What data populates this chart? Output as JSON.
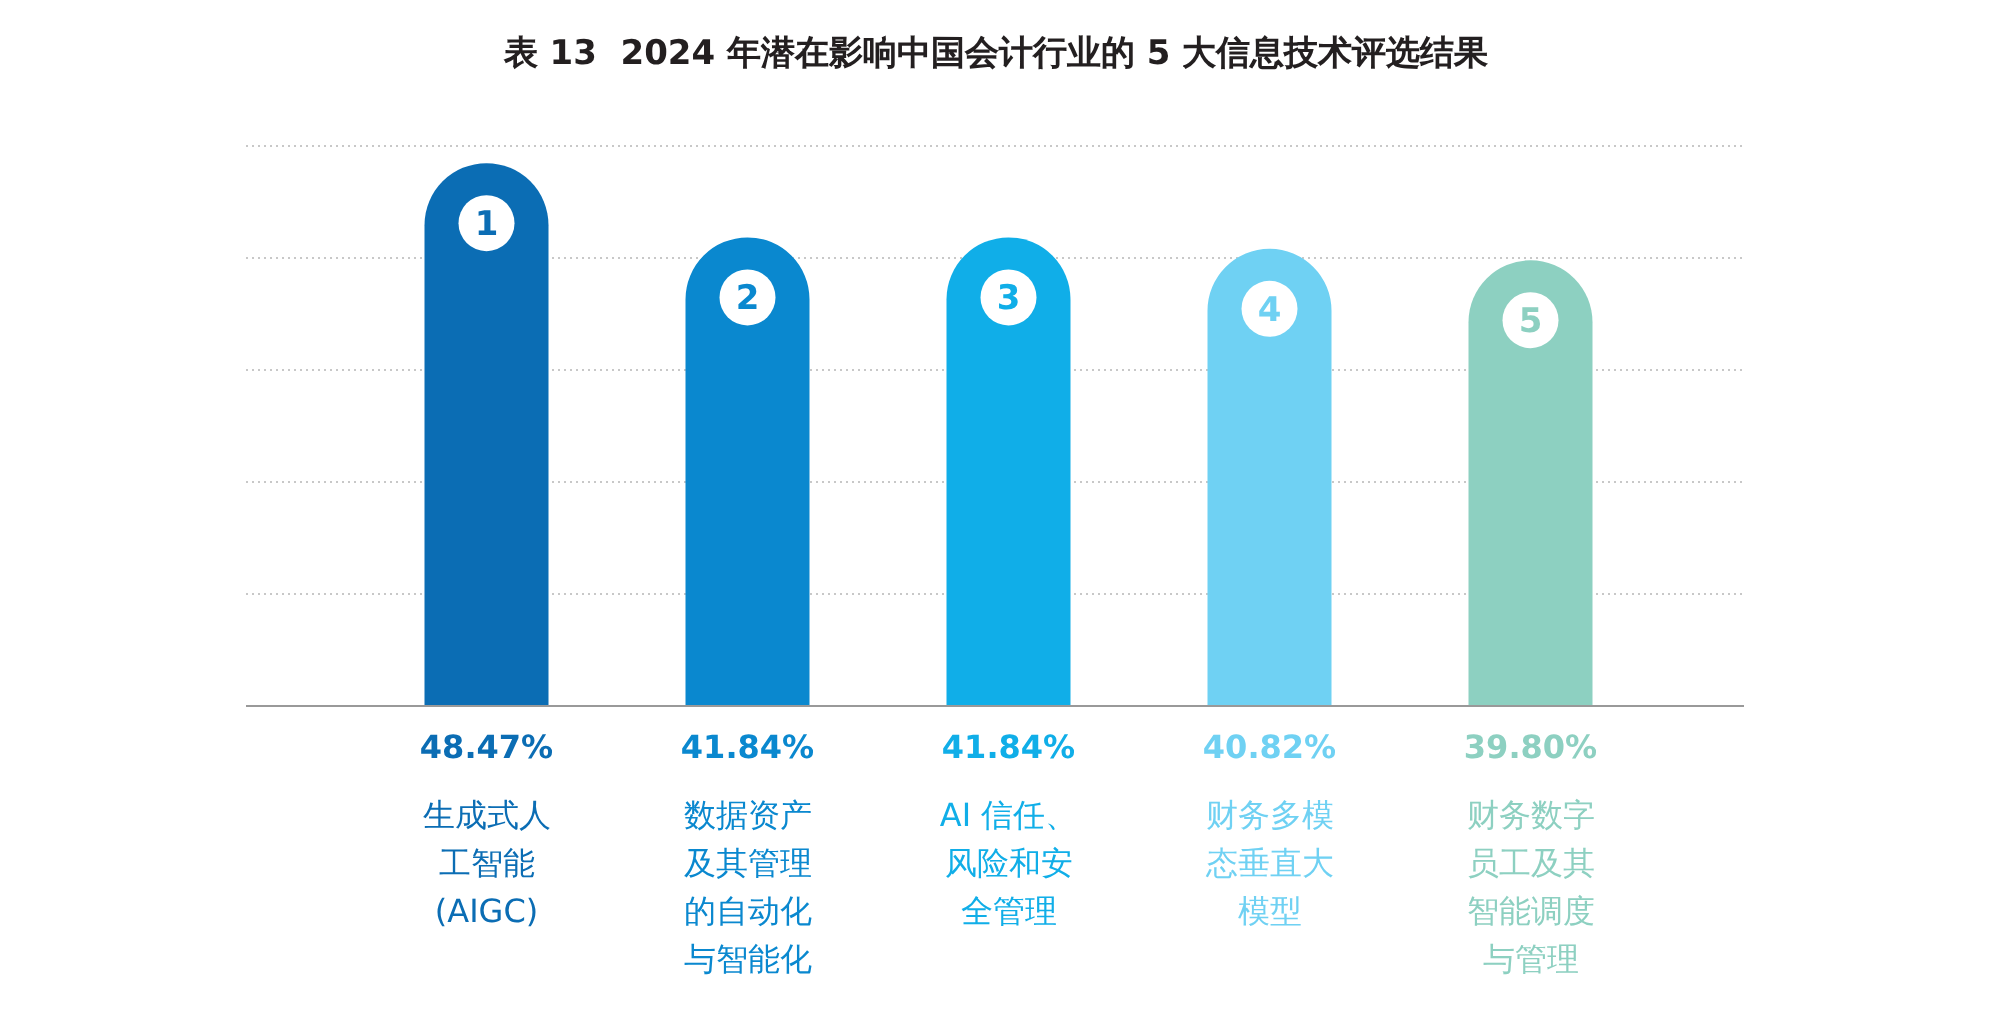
{
  "chart_data": {
    "type": "bar",
    "title": "表 13  2024 年潜在影响中国会计行业的 5 大信息技术评选结果",
    "categories": [
      "生成式人工智能(AIGC)",
      "数据资产及其管理的自动化与智能化",
      "AI 信任、风险和安全管理",
      "财务多模态垂直大模型",
      "财务数字员工及其智能调度与管理"
    ],
    "values": [
      48.47,
      41.84,
      41.84,
      40.82,
      39.8
    ],
    "value_labels": [
      "48.47%",
      "41.84%",
      "41.84%",
      "40.82%",
      "39.80%"
    ],
    "colors": [
      "#0b6db4",
      "#0a88cf",
      "#10aee8",
      "#6fd1f3",
      "#8dd0c1"
    ],
    "annotations": [
      "1",
      "2",
      "3",
      "4",
      "5"
    ],
    "ylim": [
      0,
      50
    ],
    "yticks": [
      {
        "value": 0,
        "label": null
      },
      {
        "value": 10,
        "label": null
      },
      {
        "value": 20,
        "label": null
      },
      {
        "value": 30,
        "label": null
      },
      {
        "value": 40,
        "label": null
      },
      {
        "value": 50,
        "label": null
      }
    ],
    "grid": "y",
    "tick_labels": "x"
  }
}
